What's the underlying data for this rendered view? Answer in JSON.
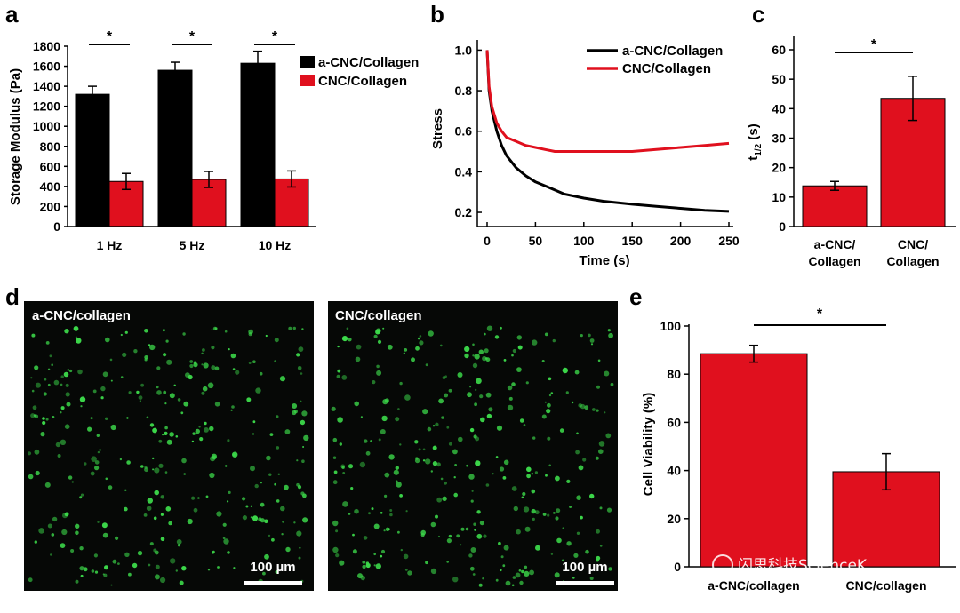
{
  "colors": {
    "black_series": "#000000",
    "red_series": "#e0101e",
    "dot_green": "#3cd94a",
    "image_bg": "#060806"
  },
  "panels": {
    "a": "a",
    "b": "b",
    "c": "c",
    "d": "d",
    "e": "e"
  },
  "chart_data": [
    {
      "panel": "a",
      "type": "bar",
      "categories": [
        "1 Hz",
        "5 Hz",
        "10 Hz"
      ],
      "series": [
        {
          "name": "a-CNC/Collagen",
          "values": [
            1320,
            1560,
            1630
          ],
          "errors": [
            80,
            80,
            120
          ]
        },
        {
          "name": "CNC/Collagen",
          "values": [
            450,
            470,
            475
          ],
          "errors": [
            80,
            80,
            80
          ]
        }
      ],
      "ylabel": "Storage Modulus (Pa)",
      "xlabel": "",
      "ylim": [
        0,
        1800
      ],
      "yticks": [
        "0",
        "200",
        "400",
        "600",
        "800",
        "1000",
        "1200",
        "1400",
        "1600",
        "1800"
      ],
      "significance": [
        "*",
        "*",
        "*"
      ],
      "legend_position": "top-right"
    },
    {
      "panel": "b",
      "type": "line",
      "xlabel": "Time (s)",
      "ylabel": "Stress",
      "xlim": [
        0,
        250
      ],
      "ylim": [
        0.13,
        1.05
      ],
      "xticks": [
        "0",
        "50",
        "100",
        "150",
        "200",
        "250"
      ],
      "yticks": [
        "0.2",
        "0.4",
        "0.6",
        "0.8",
        "1.0"
      ],
      "series": [
        {
          "name": "a-CNC/Collagen",
          "x": [
            0,
            2,
            5,
            10,
            15,
            20,
            30,
            40,
            50,
            60,
            70,
            80,
            100,
            120,
            150,
            175,
            200,
            225,
            250
          ],
          "y": [
            1.0,
            0.8,
            0.7,
            0.6,
            0.53,
            0.48,
            0.42,
            0.38,
            0.35,
            0.33,
            0.31,
            0.29,
            0.27,
            0.255,
            0.24,
            0.23,
            0.22,
            0.21,
            0.205
          ]
        },
        {
          "name": "CNC/Collagen",
          "x": [
            0,
            2,
            5,
            10,
            15,
            20,
            30,
            40,
            50,
            60,
            70,
            80,
            100,
            120,
            150,
            175,
            200,
            225,
            250
          ],
          "y": [
            1.0,
            0.82,
            0.72,
            0.64,
            0.6,
            0.57,
            0.55,
            0.53,
            0.52,
            0.51,
            0.5,
            0.5,
            0.5,
            0.5,
            0.5,
            0.51,
            0.52,
            0.53,
            0.54
          ]
        }
      ],
      "legend_position": "top-right"
    },
    {
      "panel": "c",
      "type": "bar",
      "categories": [
        "a-CNC/\nCollagen",
        "CNC/\nCollagen"
      ],
      "values": [
        13.8,
        43.5
      ],
      "errors": [
        1.5,
        7.5
      ],
      "ylabel": "t1/2 (s)",
      "ylim": [
        0,
        60
      ],
      "yticks": [
        "0",
        "10",
        "20",
        "30",
        "40",
        "50",
        "60"
      ],
      "significance": "*"
    },
    {
      "panel": "e",
      "type": "bar",
      "categories": [
        "a-CNC/collagen",
        "CNC/collagen"
      ],
      "values": [
        88.5,
        39.5
      ],
      "errors": [
        3.5,
        7.5
      ],
      "ylabel": "Cell Viability (%)",
      "ylim": [
        0,
        100
      ],
      "yticks": [
        "0",
        "20",
        "40",
        "60",
        "80",
        "100"
      ],
      "significance": "*"
    }
  ],
  "panel_d": {
    "images": [
      {
        "label": "a-CNC/collagen",
        "scale_bar": "100 µm"
      },
      {
        "label": "CNC/collagen",
        "scale_bar": "100 µm"
      }
    ]
  },
  "watermark": {
    "text": "闪思科技ScienceK"
  },
  "ylabel_c_main": "t",
  "ylabel_c_sub": "1/2",
  "ylabel_c_unit": " (s)"
}
